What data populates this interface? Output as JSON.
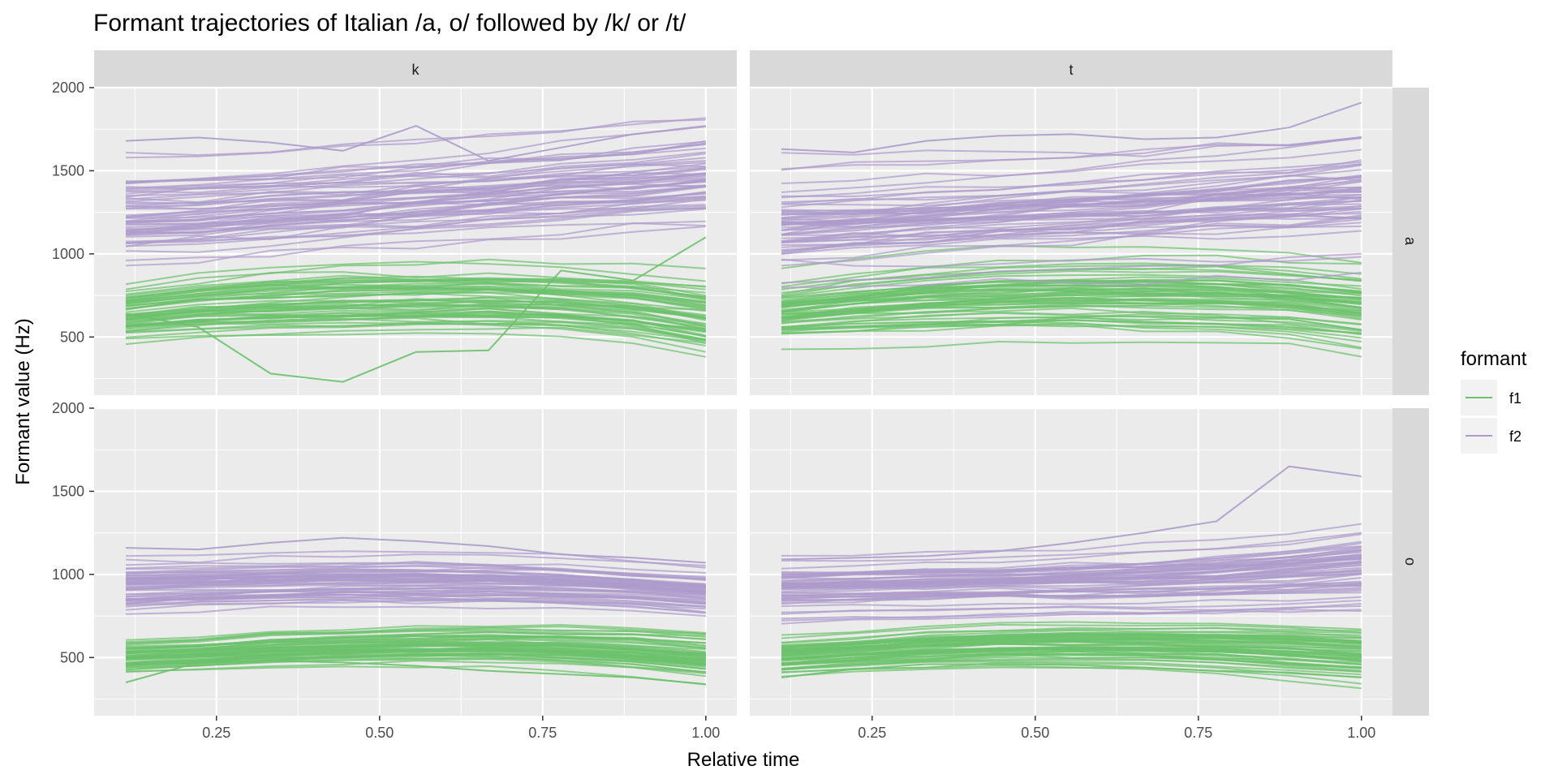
{
  "chart_data": {
    "type": "line",
    "title": "Formant trajectories of Italian /a, o/ followed by /k/ or /t/",
    "xlabel": "Relative time",
    "ylabel": "Formant value (Hz)",
    "xlim": [
      0.0625,
      1.0475
    ],
    "ylim": [
      150,
      2000
    ],
    "x_ticks": [
      0.25,
      0.5,
      0.75,
      1.0
    ],
    "x_tick_labels": [
      "0.25",
      "0.50",
      "0.75",
      "1.00"
    ],
    "y_ticks": [
      500,
      1000,
      1500,
      2000
    ],
    "y_tick_labels": [
      "500",
      "1000",
      "1500",
      "2000"
    ],
    "x_points": [
      0.111,
      0.222,
      0.333,
      0.444,
      0.556,
      0.667,
      0.778,
      0.889,
      1.0
    ],
    "facet_columns": [
      "k",
      "t"
    ],
    "facet_rows": [
      "a",
      "o"
    ],
    "grid": true,
    "legend": {
      "title": "formant",
      "position": "right",
      "entries": [
        {
          "label": "f1",
          "color": "#6cc26c"
        },
        {
          "label": "f2",
          "color": "#ad9bcc"
        }
      ]
    },
    "colors": {
      "f1": "#6cc26c",
      "f2": "#ad9bcc",
      "panel_bg": "#ebebeb",
      "strip_bg": "#d9d9d9",
      "grid": "#ffffff"
    },
    "panels": [
      {
        "col": "k",
        "row": "a",
        "f1_center": [
          650,
          690,
          715,
          730,
          735,
          735,
          720,
          690,
          630
        ],
        "f1_spread": [
          90,
          100,
          110,
          115,
          115,
          115,
          115,
          120,
          130
        ],
        "f1_count": 60,
        "f1_outlier": [
          640,
          560,
          280,
          230,
          410,
          420,
          900,
          840,
          1100
        ],
        "f2_center": [
          1190,
          1210,
          1240,
          1270,
          1300,
          1330,
          1360,
          1390,
          1420
        ],
        "f2_spread": [
          170,
          170,
          165,
          165,
          165,
          165,
          170,
          170,
          175
        ],
        "f2_count": 60,
        "f2_outlier": [
          1680,
          1700,
          1670,
          1620,
          1770,
          1560,
          1640,
          1720,
          1770
        ]
      },
      {
        "col": "t",
        "row": "a",
        "f1_center": [
          650,
          690,
          720,
          740,
          750,
          750,
          745,
          725,
          680
        ],
        "f1_spread": [
          90,
          100,
          110,
          115,
          115,
          120,
          120,
          120,
          125
        ],
        "f1_count": 60,
        "f1_outlier": [
          560,
          580,
          590,
          595,
          600,
          590,
          580,
          560,
          520
        ],
        "f2_center": [
          1180,
          1200,
          1220,
          1245,
          1265,
          1290,
          1320,
          1345,
          1370
        ],
        "f2_spread": [
          170,
          170,
          170,
          170,
          170,
          175,
          175,
          180,
          185
        ],
        "f2_count": 60,
        "f2_outlier": [
          1630,
          1610,
          1680,
          1710,
          1720,
          1690,
          1700,
          1760,
          1910
        ]
      },
      {
        "col": "k",
        "row": "o",
        "f1_center": [
          500,
          520,
          545,
          560,
          570,
          575,
          565,
          545,
          510
        ],
        "f1_spread": [
          55,
          55,
          60,
          60,
          65,
          65,
          70,
          75,
          80
        ],
        "f1_count": 60,
        "f1_outlier": [
          350,
          470,
          480,
          470,
          450,
          420,
          400,
          380,
          340
        ],
        "f2_center": [
          920,
          935,
          945,
          955,
          955,
          950,
          940,
          920,
          890
        ],
        "f2_spread": [
          90,
          85,
          85,
          85,
          85,
          85,
          80,
          75,
          75
        ],
        "f2_count": 60,
        "f2_outlier": [
          1160,
          1150,
          1190,
          1220,
          1200,
          1170,
          1120,
          1100,
          1070
        ]
      },
      {
        "col": "t",
        "row": "o",
        "f1_center": [
          510,
          535,
          560,
          575,
          580,
          575,
          565,
          545,
          520
        ],
        "f1_spread": [
          55,
          55,
          60,
          60,
          65,
          65,
          70,
          75,
          80
        ],
        "f1_count": 60,
        "f1_outlier": [
          380,
          430,
          460,
          460,
          455,
          440,
          420,
          410,
          380
        ],
        "f2_center": [
          910,
          920,
          930,
          940,
          950,
          960,
          975,
          1000,
          1030
        ],
        "f2_spread": [
          85,
          85,
          85,
          85,
          90,
          95,
          100,
          110,
          120
        ],
        "f2_count": 60,
        "f2_outlier": [
          1090,
          1100,
          1110,
          1140,
          1190,
          1250,
          1320,
          1650,
          1590
        ]
      }
    ]
  }
}
